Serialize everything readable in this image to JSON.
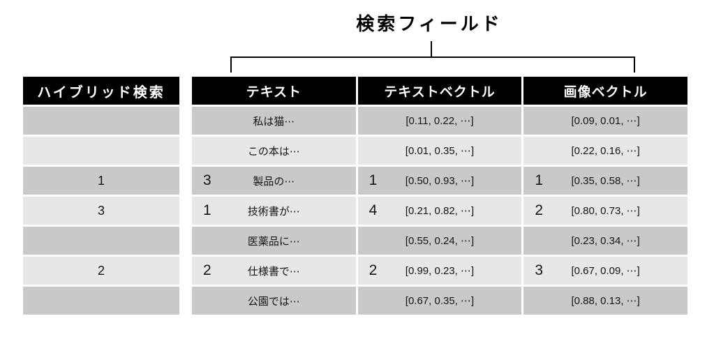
{
  "title": "検索フィールド",
  "colors": {
    "header_bg": "#000000",
    "header_text": "#ffffff",
    "row_dark": "#c9c9c9",
    "row_light": "#e7e7e7"
  },
  "hybrid_table": {
    "header": "ハイブリッド検索",
    "rows": [
      "",
      "",
      "1",
      "3",
      "",
      "2",
      ""
    ]
  },
  "text_column": {
    "header": "テキスト",
    "rows": [
      {
        "rank": "",
        "text": "私は猫⋯"
      },
      {
        "rank": "",
        "text": "この本は⋯"
      },
      {
        "rank": "3",
        "text": "製品の⋯"
      },
      {
        "rank": "1",
        "text": "技術書が⋯"
      },
      {
        "rank": "",
        "text": "医薬品に⋯"
      },
      {
        "rank": "2",
        "text": "仕様書で⋯"
      },
      {
        "rank": "",
        "text": "公園では⋯"
      }
    ]
  },
  "text_vector_column": {
    "header": "テキストベクトル",
    "rows": [
      {
        "rank": "",
        "text": "[0.11, 0.22, ⋯]"
      },
      {
        "rank": "",
        "text": "[0.01, 0.35, ⋯]"
      },
      {
        "rank": "1",
        "text": "[0.50, 0.93, ⋯]"
      },
      {
        "rank": "4",
        "text": "[0.21, 0.82, ⋯]"
      },
      {
        "rank": "",
        "text": "[0.55, 0.24, ⋯]"
      },
      {
        "rank": "2",
        "text": "[0.99, 0.23, ⋯]"
      },
      {
        "rank": "",
        "text": "[0.67, 0.35, ⋯]"
      }
    ]
  },
  "image_vector_column": {
    "header": "画像ベクトル",
    "rows": [
      {
        "rank": "",
        "text": "[0.09, 0.01, ⋯]"
      },
      {
        "rank": "",
        "text": "[0.22, 0.16, ⋯]"
      },
      {
        "rank": "1",
        "text": "[0.35, 0.58, ⋯]"
      },
      {
        "rank": "2",
        "text": "[0.80, 0.73, ⋯]"
      },
      {
        "rank": "",
        "text": "[0.23, 0.34, ⋯]"
      },
      {
        "rank": "3",
        "text": "[0.67, 0.09, ⋯]"
      },
      {
        "rank": "",
        "text": "[0.88, 0.13, ⋯]"
      }
    ]
  }
}
